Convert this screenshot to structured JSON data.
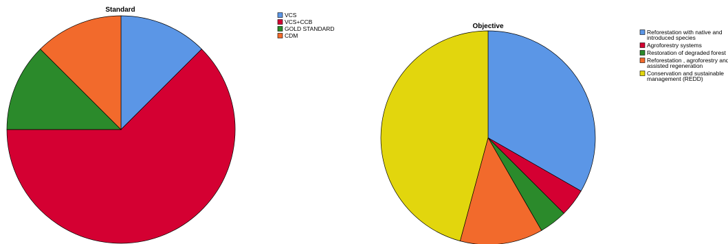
{
  "chart_data": [
    {
      "type": "pie",
      "title": "Standard",
      "legend_position": "right",
      "start_angle_deg": 0,
      "direction": "clockwise",
      "categories": [
        "VCS",
        "VCS+CCB",
        "GOLD STANDARD",
        "CDM"
      ],
      "values": [
        12.5,
        62.5,
        12.5,
        12.5
      ],
      "colors": [
        "#5b96e6",
        "#d40032",
        "#2b8a2b",
        "#f26a2c"
      ]
    },
    {
      "type": "pie",
      "title": "Objective",
      "legend_position": "right",
      "start_angle_deg": 0,
      "direction": "clockwise",
      "categories": [
        "Reforestation with native and introduced species",
        "Agroforestry systems",
        "Restoration of degraded forest",
        "Reforestation , agroforestry and assisted regeneration",
        "Conservation and sustainable management (REDD)"
      ],
      "legend_lines": [
        [
          "Reforestation with native and",
          "introduced species"
        ],
        [
          "Agroforestry systems"
        ],
        [
          "Restoration of degraded forest"
        ],
        [
          "Reforestation , agroforestry and",
          "assisted regeneration"
        ],
        [
          "Conservation and sustainable",
          "management (REDD)"
        ]
      ],
      "values": [
        33.3,
        4.2,
        4.2,
        12.5,
        45.8
      ],
      "colors": [
        "#5b96e6",
        "#d40032",
        "#2b8a2b",
        "#f26a2c",
        "#e2d60d"
      ]
    }
  ]
}
